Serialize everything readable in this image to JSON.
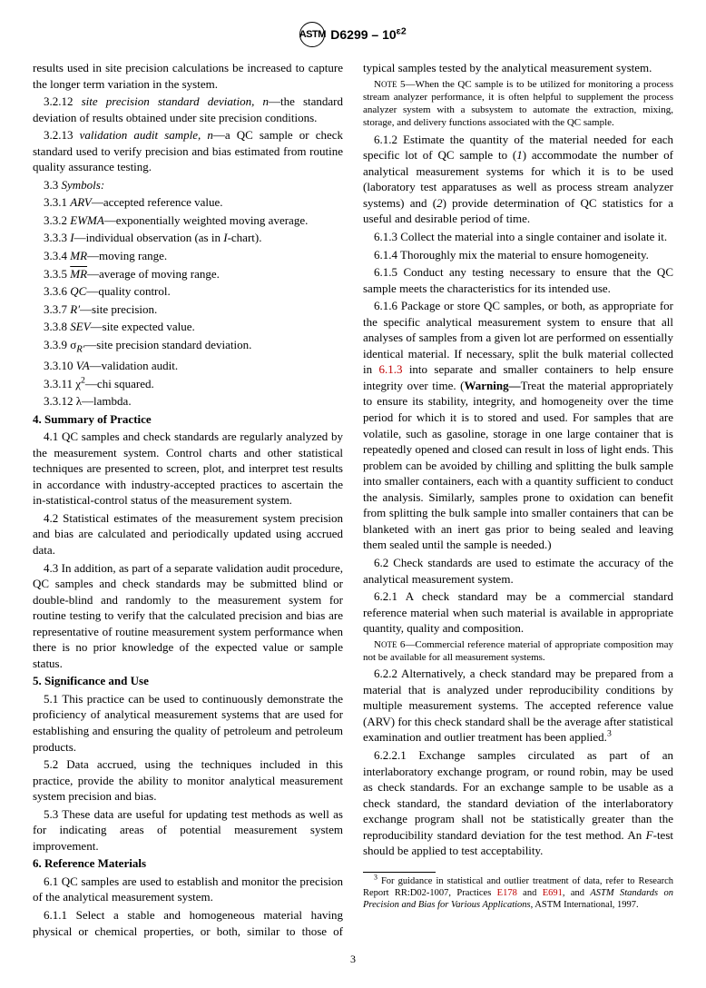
{
  "header": {
    "logo_text": "ASTM",
    "doc_id": "D6299 – 10",
    "suffix": "ɛ2"
  },
  "left": {
    "p_cont": "results used in site precision calculations be increased to capture the longer term variation in the system.",
    "p_3_2_12": "3.2.12 site precision standard deviation, n—the standard deviation of results obtained under site precision conditions.",
    "p_3_2_13": "3.2.13 validation audit sample, n—a QC sample or check standard used to verify precision and bias estimated from routine quality assurance testing.",
    "symbols_head": "3.3 Symbols:",
    "s1": "3.3.1 ARV—accepted reference value.",
    "s2": "3.3.2 EWMA—exponentially weighted moving average.",
    "s3": "3.3.3 I—individual observation (as in I-chart).",
    "s4": "3.3.4 MR—moving range.",
    "s5_pre": "3.3.5 ",
    "s5_sym": "MR",
    "s5_post": "—average of moving range.",
    "s6": "3.3.6 QC—quality control.",
    "s7": "3.3.7 R′—site precision.",
    "s8": "3.3.8 SEV—site expected value.",
    "s9_pre": "3.3.9 σ",
    "s9_sub": "R′",
    "s9_post": "—site precision standard deviation.",
    "s10": "3.3.10 VA—validation audit.",
    "s11_pre": "3.3.11 χ",
    "s11_sup": "2",
    "s11_post": "—chi squared.",
    "s12": "3.3.12 λ—lambda.",
    "sec4_head": "4. Summary of Practice",
    "p_4_1": "4.1 QC samples and check standards are regularly analyzed by the measurement system. Control charts and other statistical techniques are presented to screen, plot, and interpret test results in accordance with industry-accepted practices to ascertain the in-statistical-control status of the measurement system.",
    "p_4_2": "4.2 Statistical estimates of the measurement system precision and bias are calculated and periodically updated using accrued data.",
    "p_4_3": "4.3 In addition, as part of a separate validation audit procedure, QC samples and check standards may be submitted blind or double-blind and randomly to the measurement system for routine testing to verify that the calculated precision and bias are representative of routine measurement system performance when there is no prior knowledge of the expected value or sample status.",
    "sec5_head": "5. Significance and Use",
    "p_5_1": "5.1 This practice can be used to continuously demonstrate the proficiency of analytical measurement systems that are used for establishing and ensuring the quality of petroleum and petroleum products.",
    "p_5_2": "5.2 Data accrued, using the techniques included in this practice, provide the ability to monitor analytical measurement system precision and bias.",
    "p_5_3": "5.3 These data are useful for updating test methods as well as for indicating areas of potential measurement system improvement.",
    "sec6_head": "6. Reference Materials",
    "p_6_1": "6.1 QC samples are used to establish and monitor the precision of the analytical measurement system."
  },
  "right": {
    "p_6_1_1": "6.1.1 Select a stable and homogeneous material having physical or chemical properties, or both, similar to those of typical samples tested by the analytical measurement system.",
    "note5_label": "Note 5—",
    "note5": "When the QC sample is to be utilized for monitoring a process stream analyzer performance, it is often helpful to supplement the process analyzer system with a subsystem to automate the extraction, mixing, storage, and delivery functions associated with the QC sample.",
    "p_6_1_2": "6.1.2 Estimate the quantity of the material needed for each specific lot of QC sample to (1) accommodate the number of analytical measurement systems for which it is to be used (laboratory test apparatuses as well as process stream analyzer systems) and (2) provide determination of QC statistics for a useful and desirable period of time.",
    "p_6_1_3": "6.1.3 Collect the material into a single container and isolate it.",
    "p_6_1_4": "6.1.4 Thoroughly mix the material to ensure homogeneity.",
    "p_6_1_5": "6.1.5 Conduct any testing necessary to ensure that the QC sample meets the characteristics for its intended use.",
    "p_6_1_6_a": "6.1.6 Package or store QC samples, or both, as appropriate for the specific analytical measurement system to ensure that all analyses of samples from a given lot are performed on essentially identical material. If necessary, split the bulk material collected in ",
    "p_6_1_6_link": "6.1.3",
    "p_6_1_6_b": " into separate and smaller containers to help ensure integrity over time. (",
    "warning": "Warning—",
    "p_6_1_6_c": "Treat the material appropriately to ensure its stability, integrity, and homogeneity over the time period for which it is to stored and used. For samples that are volatile, such as gasoline, storage in one large container that is repeatedly opened and closed can result in loss of light ends. This problem can be avoided by chilling and splitting the bulk sample into smaller containers, each with a quantity sufficient to conduct the analysis. Similarly, samples prone to oxidation can benefit from splitting the bulk sample into smaller containers that can be blanketed with an inert gas prior to being sealed and leaving them sealed until the sample is needed.)",
    "p_6_2": "6.2 Check standards are used to estimate the accuracy of the analytical measurement system.",
    "p_6_2_1": "6.2.1 A check standard may be a commercial standard reference material when such material is available in appropriate quantity, quality and composition.",
    "note6_label": "Note 6—",
    "note6": "Commercial reference material of appropriate composition may not be available for all measurement systems.",
    "p_6_2_2": "6.2.2 Alternatively, a check standard may be prepared from a material that is analyzed under reproducibility conditions by multiple measurement systems. The accepted reference value (ARV) for this check standard shall be the average after statistical examination and outlier treatment has been applied.",
    "fn_mark": "3",
    "p_6_2_2_1": "6.2.2.1 Exchange samples circulated as part of an interlaboratory exchange program, or round robin, may be used as check standards. For an exchange sample to be usable as a check standard, the standard deviation of the interlaboratory exchange program shall not be statistically greater than the reproducibility standard deviation for the test method. An F-test should be applied to test acceptability.",
    "footnote_pre": "For guidance in statistical and outlier treatment of data, refer to Research Report RR:D02-1007, Practices ",
    "footnote_l1": "E178",
    "footnote_mid": " and ",
    "footnote_l2": "E691",
    "footnote_post": ", and ASTM Standards on Precision and Bias for Various Applications, ASTM International, 1997."
  },
  "page_number": "3"
}
